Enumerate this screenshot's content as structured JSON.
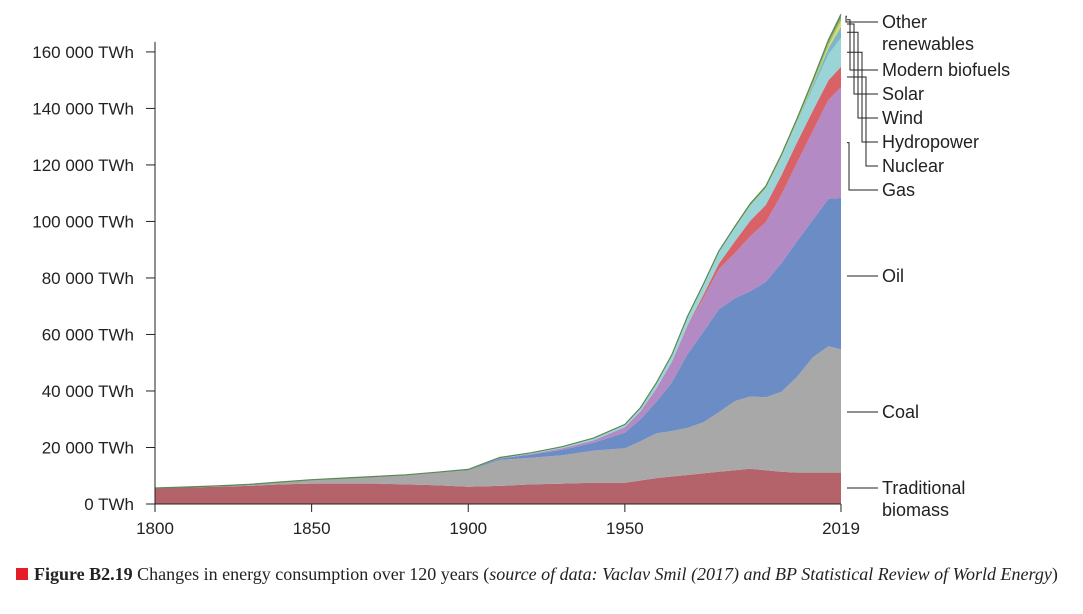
{
  "chart_data": {
    "type": "area",
    "stacked": true,
    "y_unit_suffix": " TWh",
    "y_ticks": [
      0,
      20000,
      40000,
      60000,
      80000,
      100000,
      120000,
      140000,
      160000
    ],
    "y_tick_labels": [
      "0 TWh",
      "20 000 TWh",
      "40 000 TWh",
      "60 000 TWh",
      "80 000 TWh",
      "100 000 TWh",
      "120 000 TWh",
      "140 000 TWh",
      "160 000 TWh"
    ],
    "x_ticks": [
      1800,
      1850,
      1900,
      1950,
      2019
    ],
    "x_tick_labels": [
      "1800",
      "1850",
      "1900",
      "1950",
      "2019"
    ],
    "xlim": [
      1800,
      2019
    ],
    "ylim": [
      0,
      172000
    ],
    "x": [
      1800,
      1810,
      1820,
      1830,
      1840,
      1850,
      1860,
      1870,
      1880,
      1890,
      1900,
      1910,
      1920,
      1930,
      1940,
      1950,
      1955,
      1960,
      1965,
      1970,
      1975,
      1980,
      1985,
      1990,
      1995,
      2000,
      2005,
      2010,
      2015,
      2019
    ],
    "series": [
      {
        "name": "Traditional biomass",
        "color": "#b5636b",
        "values": [
          5556,
          5833,
          6111,
          6389,
          6944,
          7222,
          7222,
          7222,
          6944,
          6667,
          6111,
          6389,
          6944,
          7222,
          7500,
          7500,
          8333,
          9167,
          9722,
          10278,
          10833,
          11389,
          11944,
          12500,
          11944,
          11389,
          11111,
          11111,
          11111,
          11111
        ]
      },
      {
        "name": "Coal",
        "color": "#a8a8a8",
        "values": [
          97,
          167,
          278,
          556,
          833,
          1389,
          1944,
          2500,
          3333,
          4444,
          5833,
          9167,
          9444,
          10000,
          11389,
          12222,
          13889,
          15833,
          16111,
          16667,
          18056,
          21111,
          24444,
          25556,
          25833,
          28333,
          33889,
          40833,
          44722,
          43611
        ]
      },
      {
        "name": "Oil",
        "color": "#6b8cc4",
        "values": [
          0,
          0,
          0,
          0,
          0,
          0,
          0,
          6,
          56,
          139,
          181,
          556,
          1111,
          1944,
          2778,
          5556,
          7778,
          11111,
          17222,
          26111,
          31944,
          36389,
          36389,
          37222,
          40833,
          45556,
          48056,
          48611,
          52222,
          53611
        ]
      },
      {
        "name": "Gas",
        "color": "#b48ac4",
        "values": [
          0,
          0,
          0,
          0,
          0,
          0,
          0,
          0,
          0,
          14,
          56,
          139,
          222,
          556,
          833,
          1944,
          2778,
          4722,
          7222,
          10000,
          11944,
          14167,
          15833,
          19444,
          21111,
          24167,
          27778,
          31389,
          35000,
          39167
        ]
      },
      {
        "name": "Nuclear",
        "color": "#d96268",
        "values": [
          0,
          0,
          0,
          0,
          0,
          0,
          0,
          0,
          0,
          0,
          0,
          0,
          0,
          0,
          0,
          0,
          0,
          0,
          28,
          222,
          1111,
          1944,
          4167,
          5556,
          6111,
          6944,
          7222,
          7222,
          6944,
          7222
        ]
      },
      {
        "name": "Hydropower",
        "color": "#9ad4d6",
        "values": [
          0,
          0,
          0,
          0,
          0,
          0,
          0,
          0,
          0,
          7,
          56,
          222,
          389,
          556,
          833,
          944,
          1333,
          1944,
          2500,
          3056,
          3611,
          4167,
          4722,
          5278,
          5833,
          6389,
          6944,
          8056,
          9167,
          10278
        ]
      },
      {
        "name": "Wind",
        "color": "#79b7c9",
        "values": [
          0,
          0,
          0,
          0,
          0,
          0,
          0,
          0,
          0,
          0,
          0,
          0,
          0,
          0,
          0,
          0,
          0,
          0,
          0,
          0,
          0,
          0,
          0,
          11,
          22,
          83,
          278,
          944,
          2222,
          3889
        ]
      },
      {
        "name": "Solar",
        "color": "#e3d66a",
        "values": [
          0,
          0,
          0,
          0,
          0,
          0,
          0,
          0,
          0,
          0,
          0,
          0,
          0,
          0,
          0,
          0,
          0,
          0,
          0,
          0,
          0,
          0,
          0,
          0,
          0,
          3,
          11,
          83,
          722,
          1944
        ]
      },
      {
        "name": "Modern biofuels",
        "color": "#a8c66c",
        "values": [
          0,
          0,
          0,
          0,
          0,
          0,
          0,
          0,
          0,
          0,
          0,
          0,
          0,
          0,
          0,
          0,
          0,
          0,
          0,
          0,
          28,
          83,
          167,
          222,
          278,
          306,
          500,
          944,
          1083,
          1111
        ]
      },
      {
        "name": "Other renewables",
        "color": "#6fa267",
        "values": [
          0,
          0,
          0,
          0,
          0,
          0,
          0,
          0,
          0,
          0,
          0,
          0,
          0,
          0,
          0,
          0,
          0,
          0,
          0,
          56,
          139,
          222,
          361,
          444,
          500,
          556,
          694,
          861,
          1111,
          1389
        ]
      }
    ],
    "legend": [
      {
        "series": "Other renewables",
        "lines": [
          "Other",
          "renewables"
        ]
      },
      {
        "series": "Modern biofuels",
        "lines": [
          "Modern biofuels"
        ]
      },
      {
        "series": "Solar",
        "lines": [
          "Solar"
        ]
      },
      {
        "series": "Wind",
        "lines": [
          "Wind"
        ]
      },
      {
        "series": "Hydropower",
        "lines": [
          "Hydropower"
        ]
      },
      {
        "series": "Nuclear",
        "lines": [
          "Nuclear"
        ]
      },
      {
        "series": "Gas",
        "lines": [
          "Gas"
        ]
      },
      {
        "series": "Oil",
        "lines": [
          "Oil"
        ]
      },
      {
        "series": "Coal",
        "lines": [
          "Coal"
        ]
      },
      {
        "series": "Traditional biomass",
        "lines": [
          "Traditional",
          "biomass"
        ]
      }
    ],
    "legend_placement": "right, labels connected to series by leader lines"
  },
  "caption": {
    "marker_color": "#e31e24",
    "figure_number": "Figure B2.19",
    "text": " Changes in energy consumption over 120 years (",
    "source": "source of data: Vaclav Smil (2017) and BP Statistical Review of World Energy",
    "close": ")"
  }
}
